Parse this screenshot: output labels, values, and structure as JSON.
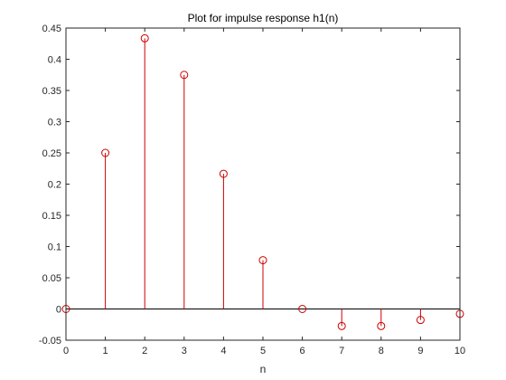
{
  "chart_data": {
    "type": "stem",
    "title": "Plot for impulse response h1(n)",
    "xlabel": "n",
    "ylabel": "",
    "xlim": [
      0,
      10
    ],
    "ylim": [
      -0.05,
      0.45
    ],
    "x_ticks": [
      "0",
      "1",
      "2",
      "3",
      "4",
      "5",
      "6",
      "7",
      "8",
      "9",
      "10"
    ],
    "y_ticks": [
      "-0.05",
      "0",
      "0.05",
      "0.1",
      "0.15",
      "0.2",
      "0.25",
      "0.3",
      "0.35",
      "0.4",
      "0.45"
    ],
    "x": [
      0,
      1,
      2,
      3,
      4,
      5,
      6,
      7,
      8,
      9,
      10
    ],
    "values": [
      0,
      0.25,
      0.4336,
      0.375,
      0.2165,
      0.0781,
      0,
      -0.0273,
      -0.0273,
      -0.0176,
      -0.0078
    ],
    "grid": false,
    "baseline": true,
    "marker": "circle",
    "colors": {
      "stem": "#cc0000",
      "baseline": "#000000",
      "axes": "#262626",
      "background": "#ffffff"
    }
  }
}
